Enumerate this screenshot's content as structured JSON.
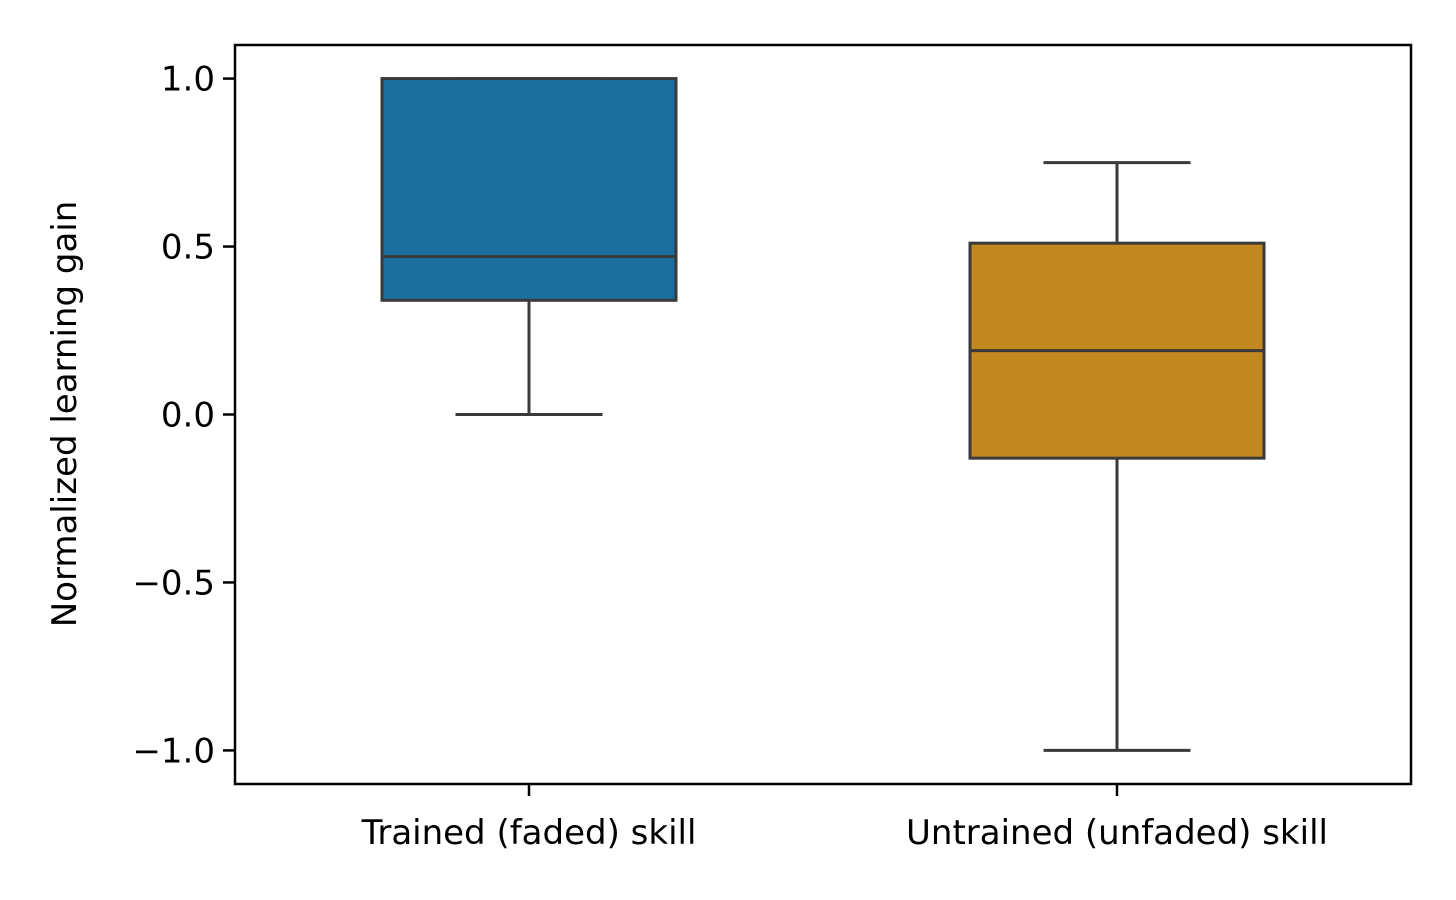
{
  "chart_data": {
    "type": "box",
    "categories": [
      "Trained (faded) skill",
      "Untrained (unfaded) skill"
    ],
    "boxes": [
      {
        "category": "Trained (faded) skill",
        "whisker_low": 0.0,
        "q1": 0.34,
        "median": 0.47,
        "q3": 1.0,
        "whisker_high": 1.0,
        "color": "#1a6f9f"
      },
      {
        "category": "Untrained (unfaded) skill",
        "whisker_low": -1.0,
        "q1": -0.13,
        "median": 0.19,
        "q3": 0.51,
        "whisker_high": 0.75,
        "color": "#c48820"
      }
    ],
    "ylabel": "Normalized learning gain",
    "xlabel": "",
    "ylim": [
      -1.1,
      1.1
    ],
    "yticks": [
      -1.0,
      -0.5,
      0.0,
      0.5,
      1.0
    ],
    "ytick_labels": [
      "−1.0",
      "−0.5",
      "0.0",
      "0.5",
      "1.0"
    ],
    "grid": false,
    "line_color": "#3a3a3a"
  }
}
